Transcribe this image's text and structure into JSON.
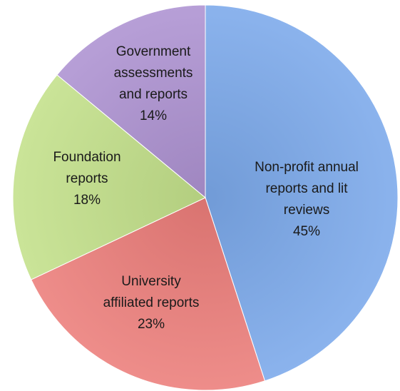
{
  "chart_data": {
    "type": "pie",
    "slices": [
      {
        "label_lines": [
          "Non-profit annual",
          "reports and lit",
          "reviews"
        ],
        "value": 45,
        "value_label": "45%",
        "color": "#7ba9ea"
      },
      {
        "label_lines": [
          "University",
          "affiliated reports"
        ],
        "value": 23,
        "value_label": "23%",
        "color": "#ec7d7a"
      },
      {
        "label_lines": [
          "Foundation",
          "reports"
        ],
        "value": 18,
        "value_label": "18%",
        "color": "#c3e08a"
      },
      {
        "label_lines": [
          "Government",
          "assessments",
          "and reports"
        ],
        "value": 14,
        "value_label": "14%",
        "color": "#ad92d1"
      }
    ]
  }
}
